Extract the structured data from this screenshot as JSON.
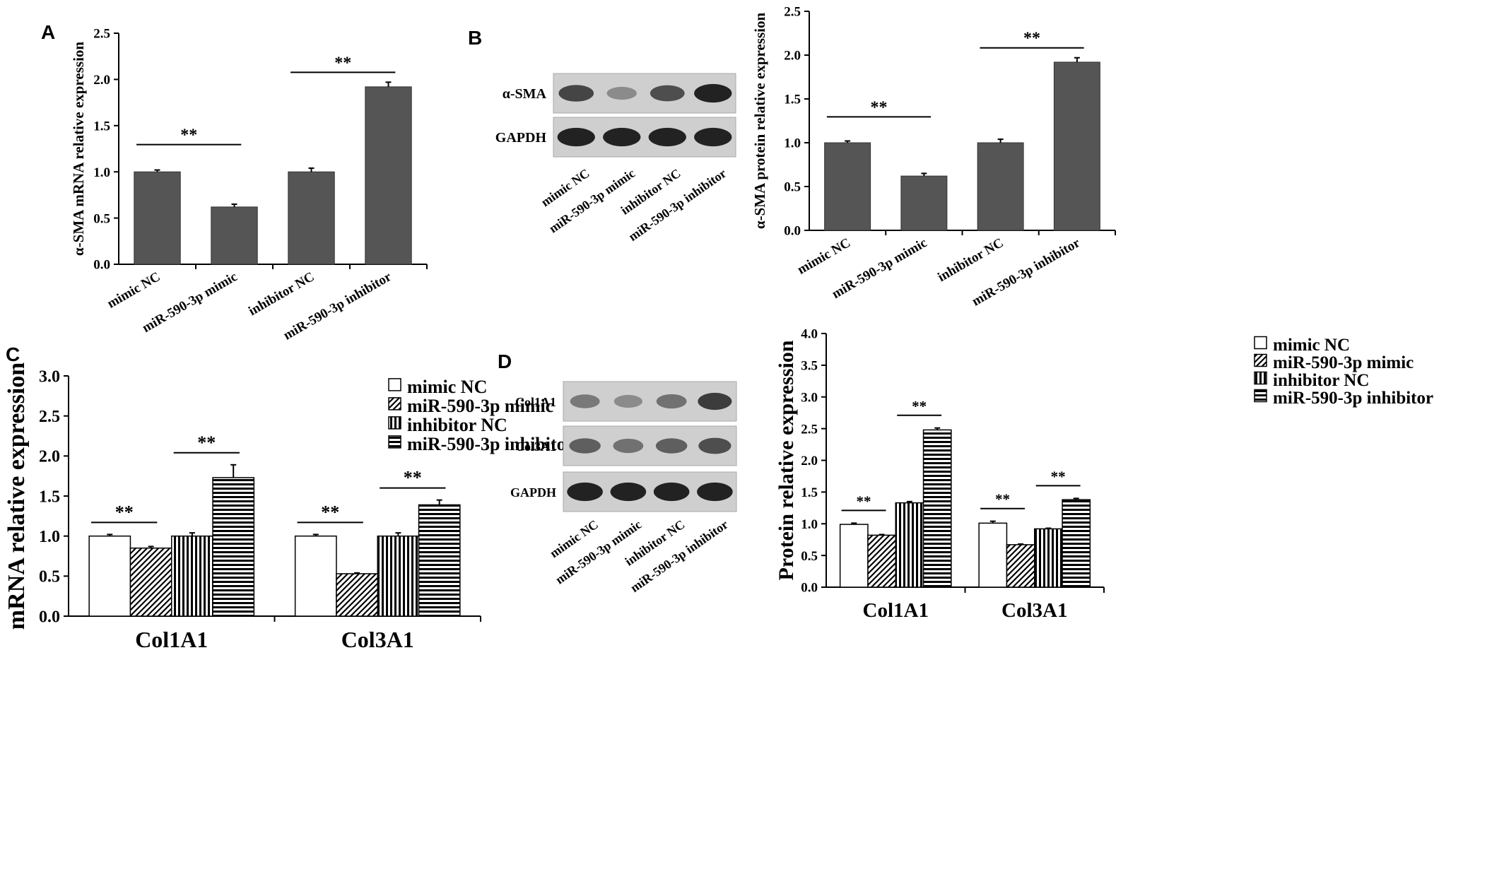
{
  "panels": {
    "A": "A",
    "B": "B",
    "C": "C",
    "D": "D"
  },
  "chart_data": [
    {
      "panel": "A",
      "type": "bar",
      "categories": [
        "mimic NC",
        "miR-590-3p mimic",
        "inhibitor NC",
        "miR-590-3p inhibitor"
      ],
      "values": [
        1.0,
        0.62,
        1.0,
        1.92
      ],
      "errors": [
        0.02,
        0.03,
        0.04,
        0.05
      ],
      "ylabel": "α-SMA  mRNA relative expression",
      "ylim": [
        0,
        2.5
      ],
      "yticks": [
        "0.0",
        "0.5",
        "1.0",
        "1.5",
        "2.0",
        "2.5"
      ],
      "significance": [
        {
          "from": 0,
          "to": 1,
          "label": "**"
        },
        {
          "from": 2,
          "to": 3,
          "label": "**"
        }
      ]
    },
    {
      "panel": "B",
      "type": "bar",
      "categories": [
        "mimic NC",
        "miR-590-3p mimic",
        "inhibitor NC",
        "miR-590-3p inhibitor"
      ],
      "values": [
        1.0,
        0.62,
        1.0,
        1.92
      ],
      "errors": [
        0.02,
        0.03,
        0.04,
        0.05
      ],
      "ylabel": "α-SMA  protein relative expression",
      "ylim": [
        0,
        2.5
      ],
      "yticks": [
        "0.0",
        "0.5",
        "1.0",
        "1.5",
        "2.0",
        "2.5"
      ],
      "significance": [
        {
          "from": 0,
          "to": 1,
          "label": "**"
        },
        {
          "from": 2,
          "to": 3,
          "label": "**"
        }
      ]
    },
    {
      "panel": "C",
      "type": "bar",
      "categories": [
        "Col1A1",
        "Col3A1"
      ],
      "series": [
        {
          "name": "mimic NC",
          "values": [
            1.0,
            1.0
          ],
          "errors": [
            0.02,
            0.02
          ]
        },
        {
          "name": "miR-590-3p mimic",
          "values": [
            0.85,
            0.53
          ],
          "errors": [
            0.02,
            0.01
          ]
        },
        {
          "name": "inhibitor NC",
          "values": [
            1.0,
            1.0
          ],
          "errors": [
            0.04,
            0.04
          ]
        },
        {
          "name": "miR-590-3p inhibitor",
          "values": [
            1.73,
            1.39
          ],
          "errors": [
            0.16,
            0.06
          ]
        }
      ],
      "ylabel": "mRNA  relative expression",
      "ylim": [
        0,
        3.0
      ],
      "yticks": [
        "0.0",
        "0.5",
        "1.0",
        "1.5",
        "2.0",
        "2.5",
        "3.0"
      ],
      "legend": "top-right",
      "significance_label": "**"
    },
    {
      "panel": "D",
      "type": "bar",
      "categories": [
        "Col1A1",
        "Col3A1"
      ],
      "series": [
        {
          "name": "mimic NC",
          "values": [
            0.99,
            1.01
          ],
          "errors": [
            0.02,
            0.03
          ]
        },
        {
          "name": "miR-590-3p mimic",
          "values": [
            0.82,
            0.67
          ],
          "errors": [
            0.01,
            0.01
          ]
        },
        {
          "name": "inhibitor NC",
          "values": [
            1.33,
            0.92
          ],
          "errors": [
            0.02,
            0.01
          ]
        },
        {
          "name": "miR-590-3p inhibitor",
          "values": [
            2.48,
            1.38
          ],
          "errors": [
            0.03,
            0.02
          ]
        }
      ],
      "ylabel": "Protein relative expression",
      "ylim": [
        0,
        4.0
      ],
      "yticks": [
        "0.0",
        "0.5",
        "1.0",
        "1.5",
        "2.0",
        "2.5",
        "3.0",
        "3.5",
        "4.0"
      ],
      "legend": "top-right",
      "significance_label": "**"
    }
  ],
  "blots": {
    "B": {
      "rows": [
        "α-SMA",
        "GAPDH"
      ],
      "lanes": [
        "mimic NC",
        "miR-590-3p mimic",
        "inhibitor NC",
        "miR-590-3p inhibitor"
      ],
      "intensity": [
        [
          0.75,
          0.35,
          0.7,
          0.95
        ],
        [
          0.95,
          0.95,
          0.95,
          0.95
        ]
      ]
    },
    "D": {
      "rows": [
        "Col1A1",
        "Col3A1",
        "GAPDH"
      ],
      "lanes": [
        "mimic NC",
        "miR-590-3p mimic",
        "inhibitor NC",
        "miR-590-3p inhibitor"
      ],
      "intensity": [
        [
          0.45,
          0.35,
          0.5,
          0.8
        ],
        [
          0.6,
          0.5,
          0.6,
          0.7
        ],
        [
          0.95,
          0.95,
          0.95,
          0.95
        ]
      ]
    }
  },
  "colors": {
    "bar_dark": "#555555",
    "axis": "#000000"
  }
}
